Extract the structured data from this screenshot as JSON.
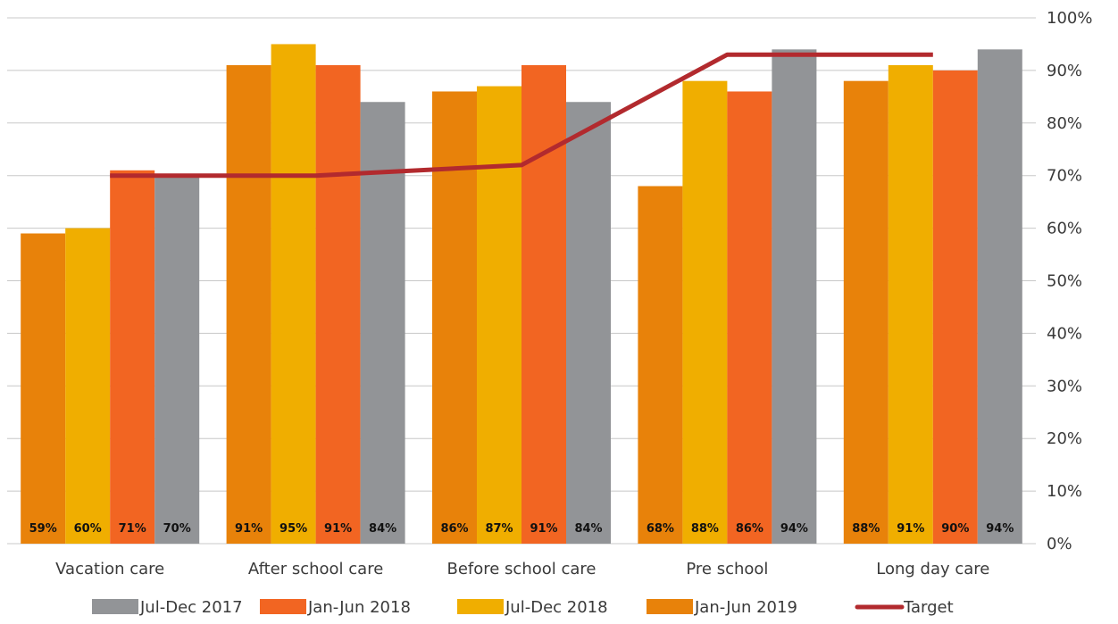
{
  "chart_data": {
    "type": "bar",
    "categories": [
      "Vacation care",
      "After school care",
      "Before school care",
      "Pre school",
      "Long day care"
    ],
    "series": [
      {
        "name": "Jan-Jun 2019",
        "color": "#E8820A",
        "values": [
          59,
          91,
          86,
          68,
          88
        ],
        "labels": [
          "59%",
          "91%",
          "86%",
          "68%",
          "88%"
        ]
      },
      {
        "name": "Jul-Dec 2018",
        "color": "#F0AE00",
        "values": [
          60,
          95,
          87,
          88,
          91
        ],
        "labels": [
          "60%",
          "95%",
          "87%",
          "88%",
          "91%"
        ]
      },
      {
        "name": "Jan-Jun 2018",
        "color": "#F26522",
        "values": [
          71,
          91,
          91,
          86,
          90
        ],
        "labels": [
          "71%",
          "91%",
          "91%",
          "86%",
          "90%"
        ]
      },
      {
        "name": "Jul-Dec 2017",
        "color": "#929497",
        "values": [
          70,
          84,
          84,
          94,
          94
        ],
        "labels": [
          "70%",
          "84%",
          "84%",
          "94%",
          "94%"
        ]
      }
    ],
    "line_series": {
      "name": "Target",
      "color": "#B22A2E",
      "values": [
        70,
        70,
        72,
        93,
        93
      ]
    },
    "ylim": [
      0,
      100
    ],
    "yticks": [
      "0%",
      "10%",
      "20%",
      "30%",
      "40%",
      "50%",
      "60%",
      "70%",
      "80%",
      "90%",
      "100%"
    ],
    "y_axis_side": "right",
    "grid": true,
    "legend": {
      "placement": "bottom",
      "entries": [
        {
          "name": "Jul-Dec 2017",
          "color": "#929497",
          "kind": "box"
        },
        {
          "name": "Jan-Jun 2018",
          "color": "#F26522",
          "kind": "box"
        },
        {
          "name": "Jul-Dec 2018",
          "color": "#F0AE00",
          "kind": "box"
        },
        {
          "name": "Jan-Jun 2019",
          "color": "#E8820A",
          "kind": "box"
        },
        {
          "name": "Target",
          "color": "#B22A2E",
          "kind": "line"
        }
      ]
    }
  }
}
